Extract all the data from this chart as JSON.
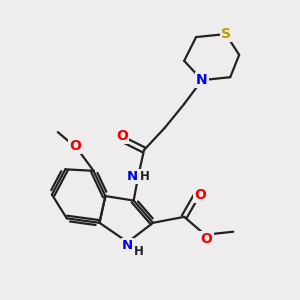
{
  "bg_color": "#eeecec",
  "bond_color": "#222222",
  "bond_width": 1.6,
  "atom_colors": {
    "S": "#b8a000",
    "N": "#0000ee",
    "O": "#ee0000",
    "C": "#222222",
    "H": "#222222"
  },
  "font_size": 8.5,
  "fig_size": [
    3.0,
    3.0
  ],
  "dpi": 100
}
